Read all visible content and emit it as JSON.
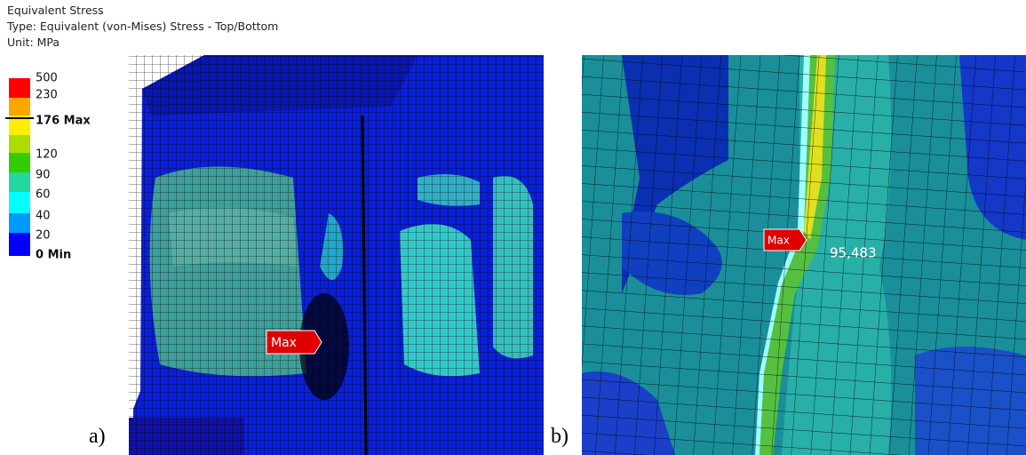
{
  "header": {
    "title": "Equivalent Stress",
    "type_line": "Type: Equivalent (von-Mises) Stress - Top/Bottom",
    "unit": "Unit: MPa"
  },
  "legend": {
    "labels": [
      "500",
      "230",
      "176 Max",
      "120",
      "90",
      "60",
      "40",
      "20",
      "0 Min"
    ]
  },
  "panels": [
    {
      "label": "a)",
      "max_tag": "Max"
    },
    {
      "label": "b)",
      "max_tag": "Max",
      "probe_value": "95,483"
    }
  ]
}
